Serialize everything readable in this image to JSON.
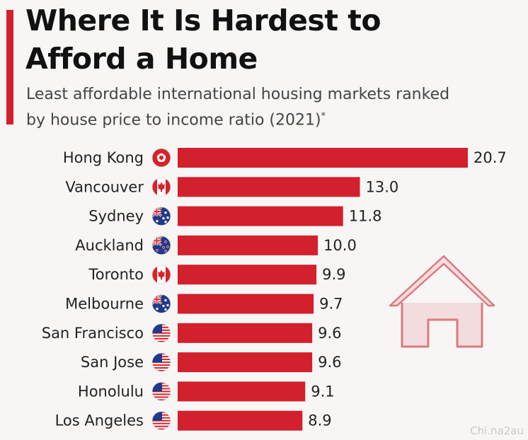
{
  "header": {
    "title": "Where It Is Hardest to Afford a Home",
    "subtitle": "Least affordable international housing markets ranked by house price to income ratio (2021)",
    "subtitle_mark": "*"
  },
  "watermark": "Chi.na2au",
  "colors": {
    "accent": "#d3202d",
    "bar": "#d3202d",
    "house_outline": "#dd7a80",
    "house_fill": "#f3dcdd"
  },
  "chart_data": {
    "type": "bar",
    "orientation": "horizontal",
    "title": "Where It Is Hardest to Afford a Home",
    "subtitle": "Least affordable international housing markets ranked by house price to income ratio (2021)",
    "categories": [
      "Hong Kong",
      "Vancouver",
      "Sydney",
      "Auckland",
      "Toronto",
      "Melbourne",
      "San Francisco",
      "San Jose",
      "Honolulu",
      "Los Angeles"
    ],
    "values": [
      20.7,
      13.0,
      11.8,
      10.0,
      9.9,
      9.7,
      9.6,
      9.6,
      9.1,
      8.9
    ],
    "value_labels": [
      "20.7",
      "13.0",
      "11.8",
      "10.0",
      "9.9",
      "9.7",
      "9.6",
      "9.6",
      "9.1",
      "8.9"
    ],
    "flags": [
      "hong-kong-flag-icon",
      "canada-flag-icon",
      "australia-flag-icon",
      "new-zealand-flag-icon",
      "canada-flag-icon",
      "australia-flag-icon",
      "usa-flag-icon",
      "usa-flag-icon",
      "usa-flag-icon",
      "usa-flag-icon"
    ],
    "xlim": [
      0,
      20.7
    ],
    "grid": false,
    "legend": "none",
    "decoration": "house-icon"
  }
}
